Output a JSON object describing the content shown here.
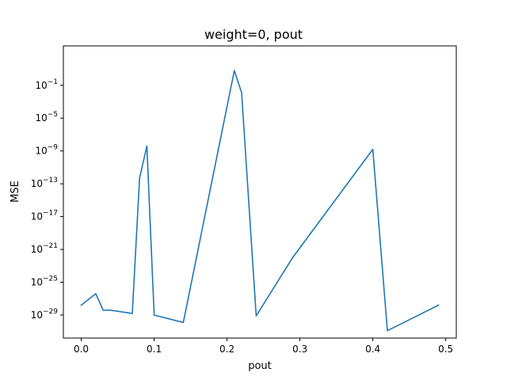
{
  "chart_data": {
    "type": "line",
    "title": "weight=0, pout",
    "xlabel": "pout",
    "ylabel": "MSE",
    "xlim": [
      -0.0245,
      0.5145
    ],
    "ylim_exponent": [
      -31.8,
      3.8
    ],
    "yscale": "log",
    "grid": false,
    "x_ticks": [
      {
        "value": 0.0,
        "label": "0.0"
      },
      {
        "value": 0.1,
        "label": "0.1"
      },
      {
        "value": 0.2,
        "label": "0.2"
      },
      {
        "value": 0.3,
        "label": "0.3"
      },
      {
        "value": 0.4,
        "label": "0.4"
      },
      {
        "value": 0.5,
        "label": "0.5"
      }
    ],
    "y_ticks": [
      {
        "exponent": -1,
        "base": "10",
        "sup": "−1"
      },
      {
        "exponent": -5,
        "base": "10",
        "sup": "−5"
      },
      {
        "exponent": -9,
        "base": "10",
        "sup": "−9"
      },
      {
        "exponent": -13,
        "base": "10",
        "sup": "−13"
      },
      {
        "exponent": -17,
        "base": "10",
        "sup": "−17"
      },
      {
        "exponent": -21,
        "base": "10",
        "sup": "−21"
      },
      {
        "exponent": -25,
        "base": "10",
        "sup": "−25"
      },
      {
        "exponent": -29,
        "base": "10",
        "sup": "−29"
      }
    ],
    "series": [
      {
        "color": "#1f77b4",
        "x": [
          0.0,
          0.02,
          0.03,
          0.04,
          0.07,
          0.08,
          0.09,
          0.1,
          0.14,
          0.21,
          0.22,
          0.24,
          0.29,
          0.4,
          0.42,
          0.49
        ],
        "y_exponent": [
          -27.8,
          -26.4,
          -28.4,
          -28.4,
          -28.8,
          -12.3,
          -8.4,
          -29.0,
          -29.9,
          0.8,
          -1.9,
          -29.1,
          -22.0,
          -8.8,
          -30.9,
          -27.8
        ]
      }
    ]
  }
}
